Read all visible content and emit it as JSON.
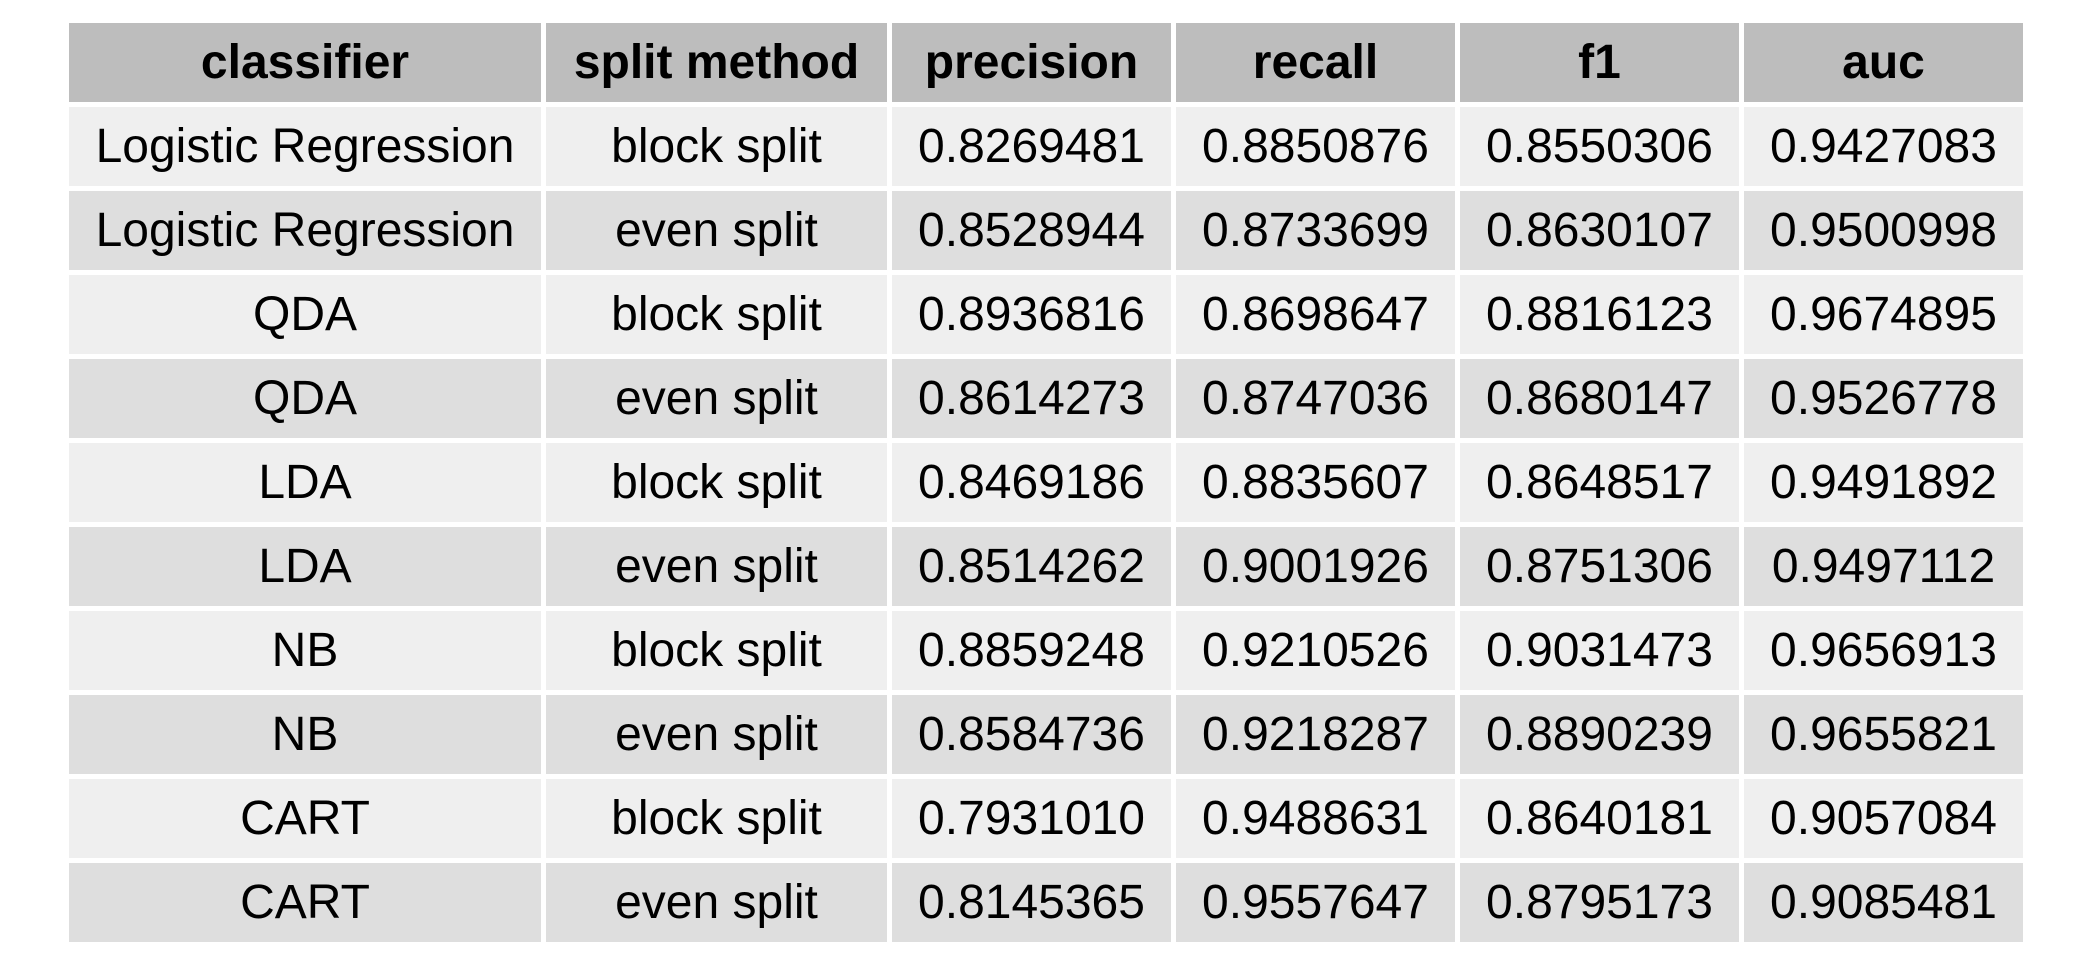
{
  "chart_data": {
    "type": "table",
    "columns": [
      "classifier",
      "split method",
      "precision",
      "recall",
      "f1",
      "auc"
    ],
    "rows": [
      [
        "Logistic Regression",
        "block split",
        "0.8269481",
        "0.8850876",
        "0.8550306",
        "0.9427083"
      ],
      [
        "Logistic Regression",
        "even split",
        "0.8528944",
        "0.8733699",
        "0.8630107",
        "0.9500998"
      ],
      [
        "QDA",
        "block split",
        "0.8936816",
        "0.8698647",
        "0.8816123",
        "0.9674895"
      ],
      [
        "QDA",
        "even split",
        "0.8614273",
        "0.8747036",
        "0.8680147",
        "0.9526778"
      ],
      [
        "LDA",
        "block split",
        "0.8469186",
        "0.8835607",
        "0.8648517",
        "0.9491892"
      ],
      [
        "LDA",
        "even split",
        "0.8514262",
        "0.9001926",
        "0.8751306",
        "0.9497112"
      ],
      [
        "NB",
        "block split",
        "0.8859248",
        "0.9210526",
        "0.9031473",
        "0.9656913"
      ],
      [
        "NB",
        "even split",
        "0.8584736",
        "0.9218287",
        "0.8890239",
        "0.9655821"
      ],
      [
        "CART",
        "block split",
        "0.7931010",
        "0.9488631",
        "0.8640181",
        "0.9057084"
      ],
      [
        "CART",
        "even split",
        "0.8145365",
        "0.9557647",
        "0.8795173",
        "0.9085481"
      ]
    ],
    "colors": {
      "header_bg": "#bdbdbd",
      "row_odd_bg": "#efefef",
      "row_even_bg": "#dedede"
    }
  }
}
